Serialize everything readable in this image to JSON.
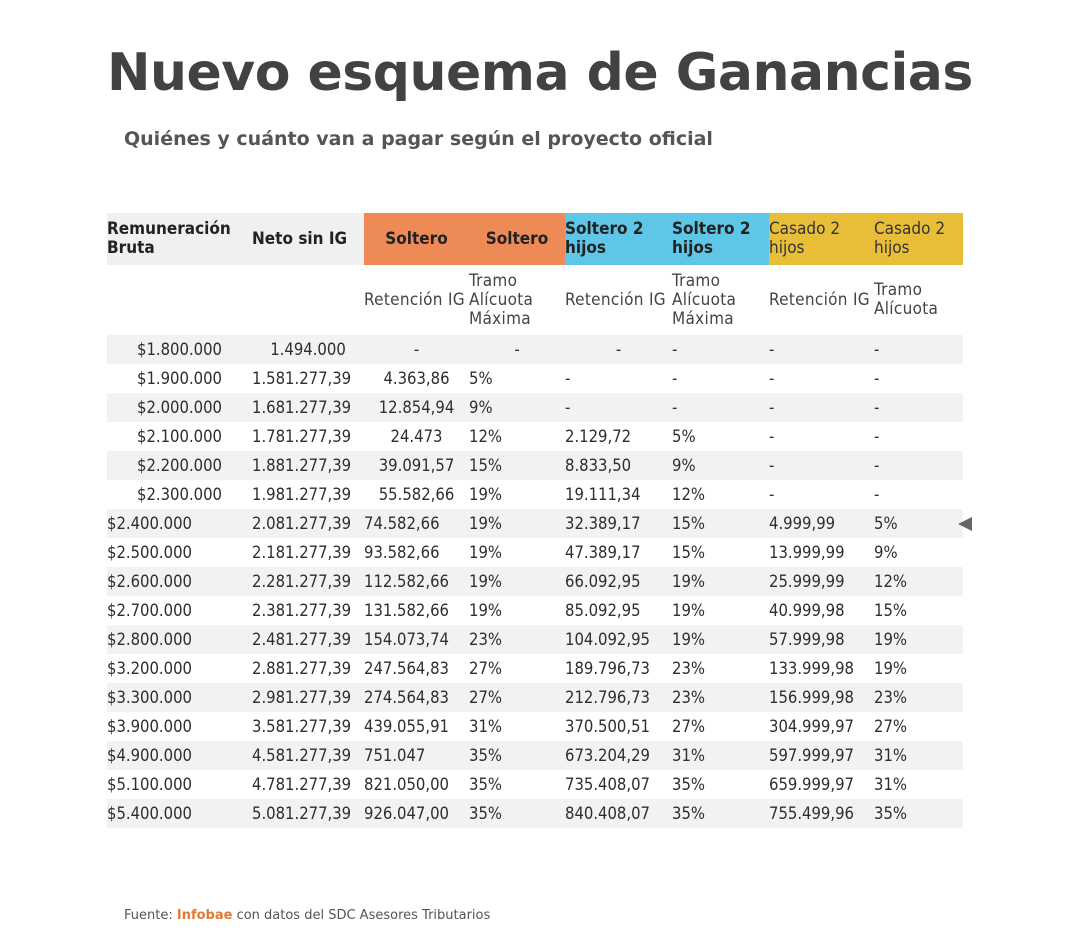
{
  "title": "Nuevo esquema de Ganancias",
  "subtitle": "Quiénes y cuánto van a pagar según el proyecto oficial",
  "headers": {
    "h1": "Remuneración Bruta",
    "h2": "Neto sin IG",
    "h3": "Soltero",
    "h4": "Soltero",
    "h5": "Soltero 2 hijos",
    "h6": "Soltero 2 hijos",
    "h7": "Casado 2 hijos",
    "h8": "Casado 2 hijos"
  },
  "subheaders": {
    "s3": "Retención IG",
    "s4": "Tramo Alícuota Máxima",
    "s5": "Retención IG",
    "s6": "Tramo Alícuota Máxima",
    "s7": "Retención IG",
    "s8": "Tramo Alícuota"
  },
  "rows": [
    [
      "$1.800.000",
      "1.494.000",
      "-",
      "-",
      "-",
      "-",
      "-",
      "-"
    ],
    [
      "$1.900.000",
      "1.581.277,39",
      "4.363,86",
      "5%",
      "-",
      "-",
      "-",
      "-"
    ],
    [
      "$2.000.000",
      "1.681.277,39",
      "12.854,94",
      "9%",
      "-",
      "-",
      "-",
      "-"
    ],
    [
      "$2.100.000",
      "1.781.277,39",
      "24.473",
      "12%",
      "2.129,72",
      "5%",
      "-",
      "-"
    ],
    [
      "$2.200.000",
      "1.881.277,39",
      "39.091,57",
      "15%",
      "8.833,50",
      "9%",
      "-",
      "-"
    ],
    [
      "$2.300.000",
      "1.981.277,39",
      "55.582,66",
      "19%",
      "19.111,34",
      "12%",
      "-",
      "-"
    ],
    [
      "$2.400.000",
      "2.081.277,39",
      "74.582,66",
      "19%",
      "32.389,17",
      "15%",
      "4.999,99",
      "5%"
    ],
    [
      "$2.500.000",
      "2.181.277,39",
      "93.582,66",
      "19%",
      "47.389,17",
      "15%",
      "13.999,99",
      "9%"
    ],
    [
      "$2.600.000",
      "2.281.277,39",
      "112.582,66",
      "19%",
      "66.092,95",
      "19%",
      "25.999,99",
      "12%"
    ],
    [
      "$2.700.000",
      "2.381.277,39",
      "131.582,66",
      "19%",
      "85.092,95",
      "19%",
      "40.999,98",
      "15%"
    ],
    [
      "$2.800.000",
      "2.481.277,39",
      "154.073,74",
      "23%",
      "104.092,95",
      "19%",
      "57.999,98",
      "19%"
    ],
    [
      "$3.200.000",
      "2.881.277,39",
      "247.564,83",
      "27%",
      "189.796,73",
      "23%",
      "133.999,98",
      "19%"
    ],
    [
      "$3.300.000",
      "2.981.277,39",
      "274.564,83",
      "27%",
      "212.796,73",
      "23%",
      "156.999,98",
      "23%"
    ],
    [
      "$3.900.000",
      "3.581.277,39",
      "439.055,91",
      "31%",
      "370.500,51",
      "27%",
      "304.999,97",
      "27%"
    ],
    [
      "$4.900.000",
      "4.581.277,39",
      "751.047",
      "35%",
      "673.204,29",
      "31%",
      "597.999,97",
      "31%"
    ],
    [
      "$5.100.000",
      "4.781.277,39",
      "821.050,00",
      "35%",
      "735.408,07",
      "35%",
      "659.999,97",
      "31%"
    ],
    [
      "$5.400.000",
      "5.081.277,39",
      "926.047,00",
      "35%",
      "840.408,07",
      "35%",
      "755.499,96",
      "35%"
    ]
  ],
  "footer": {
    "prefix": "Fuente: ",
    "brand": "Infobae",
    "suffix": " con datos del SDC Asesores Tributarios"
  },
  "colors": {
    "soltero": "#ee8a55",
    "soltero_2_hijos": "#5ec6e6",
    "casado_2_hijos": "#e8be39",
    "brand": "#e07a35"
  }
}
